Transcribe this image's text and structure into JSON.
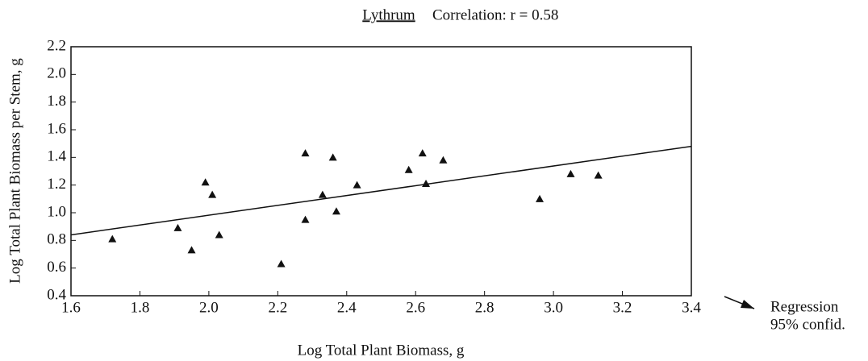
{
  "chart_data": {
    "type": "scatter",
    "title": "Lythrum",
    "subtitle": "Correlation: r = 0.58",
    "xlabel": "Log Total Plant Biomass, g",
    "ylabel": "Log Total Plant Biomass per Stem, g",
    "x": [
      1.72,
      1.91,
      1.95,
      2.03,
      1.99,
      2.01,
      2.21,
      2.28,
      2.28,
      2.36,
      2.33,
      2.37,
      2.43,
      2.58,
      2.62,
      2.63,
      2.68,
      2.96,
      3.05,
      3.13
    ],
    "values": [
      0.81,
      0.89,
      0.73,
      0.84,
      1.22,
      1.13,
      0.63,
      1.43,
      0.95,
      1.4,
      1.13,
      1.01,
      1.2,
      1.31,
      1.43,
      1.21,
      1.38,
      1.1,
      1.28,
      1.27
    ],
    "color": "#111111",
    "regression": {
      "x": [
        1.6,
        3.4
      ],
      "y": [
        0.84,
        1.48
      ]
    },
    "legend": [
      "Regression",
      "95% confid."
    ],
    "xlim": [
      1.6,
      3.4
    ],
    "xticks": [
      {
        "value": 1.6,
        "label": "1.6"
      },
      {
        "value": 1.8,
        "label": "1.8"
      },
      {
        "value": 2.0,
        "label": "2.0"
      },
      {
        "value": 2.2,
        "label": "2.2"
      },
      {
        "value": 2.4,
        "label": "2.4"
      },
      {
        "value": 2.6,
        "label": "2.6"
      },
      {
        "value": 2.8,
        "label": "2.8"
      },
      {
        "value": 3.0,
        "label": "3.0"
      },
      {
        "value": 3.2,
        "label": "3.2"
      },
      {
        "value": 3.4,
        "label": "3.4"
      }
    ],
    "ylim": [
      0.4,
      2.2
    ],
    "yticks": [
      {
        "value": 0.4,
        "label": "0.4"
      },
      {
        "value": 0.6,
        "label": "0.6"
      },
      {
        "value": 0.8,
        "label": "0.8"
      },
      {
        "value": 1.0,
        "label": "1.0"
      },
      {
        "value": 1.2,
        "label": "1.2"
      },
      {
        "value": 1.4,
        "label": "1.4"
      },
      {
        "value": 1.6,
        "label": "1.6"
      },
      {
        "value": 1.8,
        "label": "1.8"
      },
      {
        "value": 2.0,
        "label": "2.0"
      },
      {
        "value": 2.2,
        "label": "2.2"
      }
    ],
    "grid": false
  }
}
